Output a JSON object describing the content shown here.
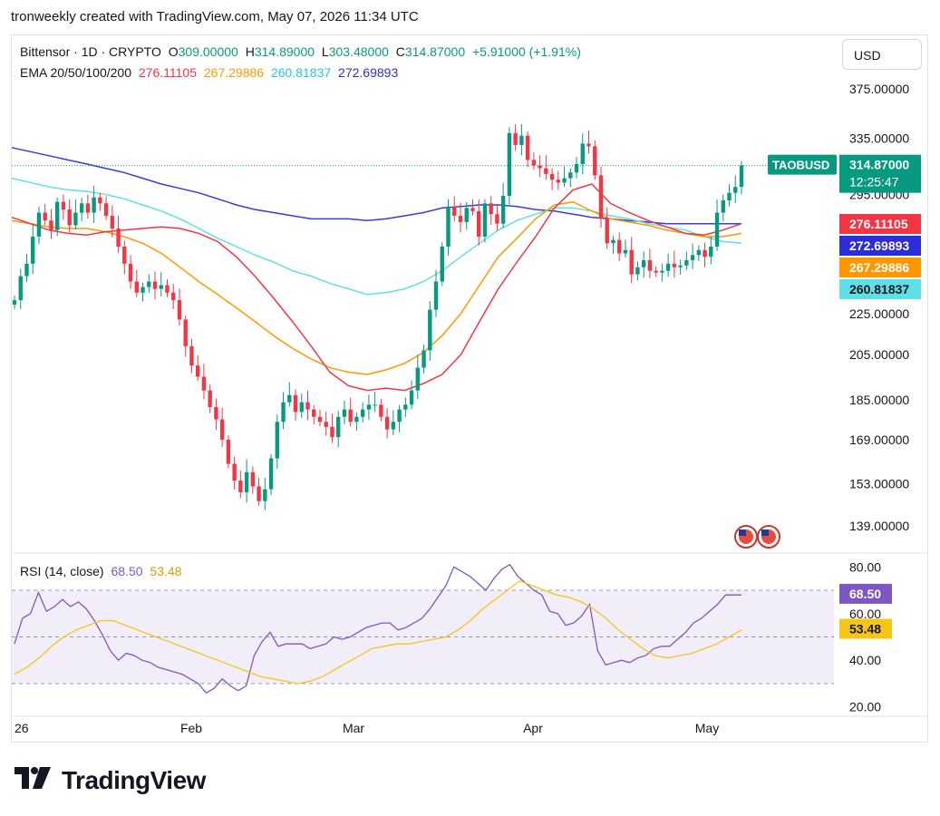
{
  "header": {
    "text": "tronweekly created with TradingView.com, May 07, 2026 11:34 UTC"
  },
  "usd_button": "USD",
  "legend": {
    "symbol": "Bittensor · 1D · CRYPTO",
    "o_label": "O",
    "o": "309.00000",
    "h_label": "H",
    "h": "314.89000",
    "l_label": "L",
    "l": "303.48000",
    "c_label": "C",
    "c": "314.87000",
    "change": "+5.91000 (+1.91%)",
    "ema_label": "EMA 20/50/100/200",
    "ema20": "276.11105",
    "ema50": "267.29886",
    "ema100": "260.81837",
    "ema200": "272.69893",
    "rsi_label": "RSI (14, close)",
    "rsi": "68.50",
    "rsi_ma": "53.48"
  },
  "brand": "TradingView",
  "colors": {
    "up": "#089981",
    "down": "#f23645",
    "ema20": "#f23645",
    "ema50": "#ff9800",
    "ema100": "#5ee0e6",
    "ema200": "#3b3bd6",
    "rsi": "#7e57c2",
    "rsi_ma": "#f5c518",
    "rsi_band": "#ede7f6"
  },
  "chart_data": {
    "type": "candlestick",
    "symbol": "TAOBUSD",
    "price_badge": "314.87000",
    "countdown": "12:25:47",
    "price_ticks": [
      "375.00000",
      "335.00000",
      "295.00000",
      "225.00000",
      "205.00000",
      "185.00000",
      "169.00000",
      "153.00000",
      "139.00000"
    ],
    "ylim": [
      132,
      385
    ],
    "y_scale": "log",
    "x_ticks": [
      "26",
      "Feb",
      "Mar",
      "Apr",
      "May"
    ],
    "ema_badges": [
      {
        "name": "EMA 20",
        "value": "276.11105",
        "color": "#f23645"
      },
      {
        "name": "EMA 200",
        "value": "272.69893",
        "color": "#2c2cd8"
      },
      {
        "name": "EMA 50",
        "value": "267.29886",
        "color": "#ff9800"
      },
      {
        "name": "EMA 100",
        "value": "260.81837",
        "color": "#5ee0e6"
      }
    ],
    "closes": [
      "2026-01-01",
      [
        232,
        245,
        252,
        268,
        283,
        278,
        272,
        290,
        285,
        275,
        283,
        289,
        283,
        293,
        289,
        281,
        273,
        262,
        252,
        242,
        236,
        239,
        242,
        238,
        240,
        236,
        232,
        222,
        209,
        200,
        195,
        189,
        182,
        177,
        169,
        160,
        154,
        150,
        157,
        152,
        147,
        151,
        162,
        176,
        184,
        187,
        180,
        184,
        181,
        178,
        176,
        174,
        170,
        178,
        181,
        176,
        178,
        181,
        183,
        183,
        178,
        173,
        176,
        181,
        183,
        189,
        199,
        207,
        227,
        242,
        262,
        287,
        281,
        277,
        286,
        284,
        268,
        289,
        282,
        276,
        294,
        339,
        330,
        337,
        319,
        315,
        313,
        309,
        305,
        303,
        306,
        310,
        316,
        331,
        329,
        308,
        279,
        264,
        266,
        258,
        260,
        246,
        250,
        254,
        248,
        247,
        248,
        252,
        250,
        251,
        254,
        257,
        260,
        256,
        262,
        283,
        291,
        296,
        300,
        315
      ]
    ],
    "ema": {
      "ema20": [
        280,
        276,
        272,
        270,
        269,
        271,
        272,
        273,
        274,
        273,
        270,
        265,
        256,
        245,
        233,
        221,
        209,
        197,
        191,
        189,
        190,
        189,
        192,
        196,
        205,
        221,
        238,
        253,
        268,
        286,
        298,
        302,
        289,
        283,
        278,
        274,
        270,
        269,
        272,
        276
      ],
      "ema50": [
        278,
        276,
        274,
        273,
        273,
        271,
        268,
        264,
        258,
        250,
        242,
        235,
        228,
        221,
        214,
        208,
        203,
        199,
        197,
        196,
        198,
        201,
        206,
        214,
        225,
        240,
        256,
        267,
        279,
        288,
        290,
        284,
        279,
        277,
        275,
        272,
        270,
        268,
        268,
        270
      ],
      "ema100": [
        306,
        303,
        300,
        298,
        297,
        295,
        292,
        288,
        284,
        279,
        273,
        267,
        262,
        257,
        253,
        248,
        245,
        241,
        238,
        235,
        236,
        238,
        242,
        248,
        256,
        264,
        272,
        278,
        282,
        286,
        286,
        284,
        281,
        279,
        276,
        274,
        272,
        268,
        265,
        264
      ],
      "ema200": [
        328,
        325,
        322,
        319,
        316,
        313,
        310,
        306,
        302,
        299,
        296,
        292,
        288,
        285,
        283,
        281,
        279,
        279,
        279,
        278,
        279,
        281,
        283,
        286,
        287,
        288,
        288,
        287,
        285,
        284,
        282,
        280,
        279,
        278,
        277,
        276,
        276,
        276,
        276,
        276
      ]
    },
    "rsi_ticks": [
      "80.00",
      "60.00",
      "40.00",
      "20.00"
    ],
    "rsi_ylim": [
      16,
      84
    ],
    "rsi_band": [
      30,
      70
    ],
    "rsi": [
      47,
      58,
      60,
      69,
      61,
      63,
      66,
      63,
      65,
      62,
      57,
      51,
      44,
      40,
      43,
      42,
      40,
      39,
      37,
      36,
      35,
      34,
      32,
      30,
      26,
      28,
      32,
      29,
      27,
      29,
      42,
      48,
      52,
      46,
      47,
      47,
      47,
      45,
      46,
      47,
      50,
      49,
      50,
      52,
      54,
      55,
      56,
      56,
      53,
      54,
      56,
      58,
      62,
      67,
      72,
      80,
      78,
      76,
      73,
      70,
      75,
      79,
      81,
      76,
      73,
      70,
      68,
      61,
      60,
      55,
      56,
      59,
      64,
      44,
      38,
      39,
      40,
      39,
      41,
      42,
      45,
      46,
      46,
      49,
      52,
      56,
      58,
      61,
      64,
      68,
      68,
      68
    ],
    "rsi_ma": [
      34,
      37,
      41,
      46,
      50,
      53,
      55,
      57,
      57,
      55,
      53,
      51,
      49,
      47,
      45,
      43,
      41,
      39,
      37,
      35,
      33,
      32,
      31,
      30,
      31,
      33,
      36,
      39,
      42,
      45,
      46,
      47,
      47,
      48,
      49,
      50,
      53,
      57,
      62,
      66,
      70,
      74,
      72,
      70,
      68,
      67,
      65,
      62,
      58,
      53,
      49,
      45,
      42,
      41,
      42,
      43,
      45,
      47,
      50,
      53
    ]
  }
}
